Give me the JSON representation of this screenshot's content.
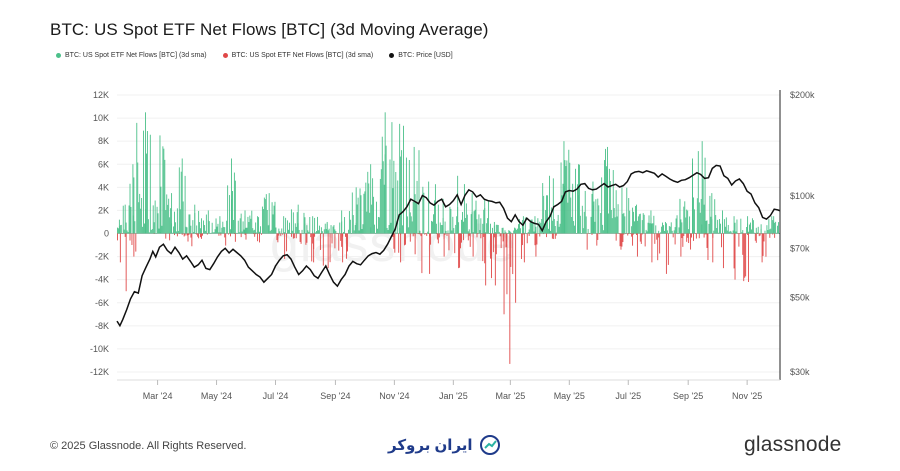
{
  "chart_data": {
    "type": "bar+line",
    "title": "BTC: US Spot ETF Net Flows [BTC] (3d Moving Average)",
    "legend": [
      {
        "label": "BTC: US Spot ETF Net Flows [BTC] (3d sma)",
        "color": "#4cc08a"
      },
      {
        "label": "BTC: US Spot ETF Net Flows [BTC] (3d sma)",
        "color": "#e04848"
      },
      {
        "label": "BTC: Price [USD]",
        "color": "#111111"
      }
    ],
    "x_tick_labels": [
      "Mar '24",
      "May '24",
      "Jul '24",
      "Sep '24",
      "Nov '24",
      "Jan '25",
      "Mar '25",
      "May '25",
      "Jul '25",
      "Sep '25",
      "Nov '25"
    ],
    "x_tick_days": [
      42,
      103,
      164,
      226,
      287,
      348,
      407,
      468,
      529,
      591,
      652
    ],
    "x_range_days": [
      0,
      686
    ],
    "y_left": {
      "ticks": [
        12000,
        10000,
        8000,
        6000,
        4000,
        2000,
        0,
        -2000,
        -4000,
        -6000,
        -8000,
        -10000,
        -12000
      ],
      "tick_labels": [
        "12K",
        "10K",
        "8K",
        "6K",
        "4K",
        "2K",
        "0",
        "-2K",
        "-4K",
        "-6K",
        "-8K",
        "-10K",
        "-12K"
      ],
      "range": [
        -12000,
        12000
      ]
    },
    "y_right": {
      "scale": "log",
      "ticks": [
        30000,
        50000,
        70000,
        100000,
        200000
      ],
      "tick_labels": [
        "$30k",
        "$50k",
        "$70k",
        "$100k",
        "$200k"
      ],
      "range": [
        30000,
        200000
      ]
    },
    "flows_segments": [
      {
        "start": 0,
        "end": 5,
        "min": -2500,
        "max": 1200
      },
      {
        "start": 5,
        "end": 12,
        "min": -5000,
        "max": 2500
      },
      {
        "start": 12,
        "end": 20,
        "min": -2000,
        "max": 6000
      },
      {
        "start": 20,
        "end": 38,
        "min": -500,
        "max": 10500
      },
      {
        "start": 38,
        "end": 50,
        "min": -1500,
        "max": 8500
      },
      {
        "start": 50,
        "end": 62,
        "min": -1000,
        "max": 3500
      },
      {
        "start": 62,
        "end": 72,
        "min": -1200,
        "max": 6500
      },
      {
        "start": 72,
        "end": 88,
        "min": -1500,
        "max": 2500
      },
      {
        "start": 88,
        "end": 100,
        "min": -1000,
        "max": 2000
      },
      {
        "start": 100,
        "end": 112,
        "min": -1000,
        "max": 1500
      },
      {
        "start": 112,
        "end": 125,
        "min": -1500,
        "max": 6500
      },
      {
        "start": 125,
        "end": 140,
        "min": -1000,
        "max": 2000
      },
      {
        "start": 140,
        "end": 150,
        "min": -1500,
        "max": 1500
      },
      {
        "start": 150,
        "end": 165,
        "min": -800,
        "max": 3500
      },
      {
        "start": 165,
        "end": 180,
        "min": -2200,
        "max": 1500
      },
      {
        "start": 180,
        "end": 195,
        "min": -1200,
        "max": 2500
      },
      {
        "start": 195,
        "end": 210,
        "min": -2500,
        "max": 1500
      },
      {
        "start": 210,
        "end": 225,
        "min": -3000,
        "max": 1000
      },
      {
        "start": 225,
        "end": 240,
        "min": -2500,
        "max": 2000
      },
      {
        "start": 240,
        "end": 255,
        "min": -800,
        "max": 4000
      },
      {
        "start": 255,
        "end": 270,
        "min": -500,
        "max": 6000
      },
      {
        "start": 270,
        "end": 285,
        "min": -800,
        "max": 10500
      },
      {
        "start": 285,
        "end": 300,
        "min": -2500,
        "max": 9500
      },
      {
        "start": 300,
        "end": 315,
        "min": -1800,
        "max": 7500
      },
      {
        "start": 315,
        "end": 330,
        "min": -3500,
        "max": 4500
      },
      {
        "start": 330,
        "end": 345,
        "min": -2000,
        "max": 3000
      },
      {
        "start": 345,
        "end": 360,
        "min": -3000,
        "max": 5000
      },
      {
        "start": 360,
        "end": 375,
        "min": -2000,
        "max": 3500
      },
      {
        "start": 375,
        "end": 385,
        "min": -4500,
        "max": 3000
      },
      {
        "start": 385,
        "end": 395,
        "min": -4500,
        "max": 1000
      },
      {
        "start": 395,
        "end": 403,
        "min": -7000,
        "max": 500
      },
      {
        "start": 403,
        "end": 408,
        "min": -11300,
        "max": 300
      },
      {
        "start": 408,
        "end": 415,
        "min": -6000,
        "max": 500
      },
      {
        "start": 415,
        "end": 425,
        "min": -2500,
        "max": 1500
      },
      {
        "start": 425,
        "end": 440,
        "min": -2000,
        "max": 1500
      },
      {
        "start": 440,
        "end": 455,
        "min": -1000,
        "max": 5000
      },
      {
        "start": 455,
        "end": 470,
        "min": -500,
        "max": 8000
      },
      {
        "start": 470,
        "end": 485,
        "min": -800,
        "max": 6000
      },
      {
        "start": 485,
        "end": 500,
        "min": -1500,
        "max": 4500
      },
      {
        "start": 500,
        "end": 515,
        "min": -600,
        "max": 7500
      },
      {
        "start": 515,
        "end": 530,
        "min": -1500,
        "max": 4000
      },
      {
        "start": 530,
        "end": 545,
        "min": -2000,
        "max": 2500
      },
      {
        "start": 545,
        "end": 560,
        "min": -2500,
        "max": 2000
      },
      {
        "start": 560,
        "end": 575,
        "min": -3500,
        "max": 1000
      },
      {
        "start": 575,
        "end": 590,
        "min": -2000,
        "max": 3000
      },
      {
        "start": 590,
        "end": 600,
        "min": -1500,
        "max": 6500
      },
      {
        "start": 600,
        "end": 610,
        "min": -1000,
        "max": 8000
      },
      {
        "start": 610,
        "end": 620,
        "min": -2500,
        "max": 3500
      },
      {
        "start": 620,
        "end": 632,
        "min": -3000,
        "max": 2000
      },
      {
        "start": 632,
        "end": 645,
        "min": -4000,
        "max": 1500
      },
      {
        "start": 645,
        "end": 660,
        "min": -4200,
        "max": 1500
      },
      {
        "start": 660,
        "end": 672,
        "min": -2500,
        "max": 800
      },
      {
        "start": 672,
        "end": 686,
        "min": -1000,
        "max": 1500
      }
    ],
    "price_points": [
      [
        0,
        42500
      ],
      [
        3,
        41200
      ],
      [
        6,
        43000
      ],
      [
        10,
        46000
      ],
      [
        14,
        49500
      ],
      [
        18,
        52000
      ],
      [
        22,
        51500
      ],
      [
        26,
        58000
      ],
      [
        30,
        61500
      ],
      [
        34,
        65000
      ],
      [
        37,
        68500
      ],
      [
        40,
        66000
      ],
      [
        44,
        70500
      ],
      [
        48,
        72000
      ],
      [
        52,
        69000
      ],
      [
        56,
        67500
      ],
      [
        60,
        70500
      ],
      [
        64,
        68000
      ],
      [
        68,
        65000
      ],
      [
        72,
        66500
      ],
      [
        76,
        64000
      ],
      [
        80,
        61500
      ],
      [
        84,
        62500
      ],
      [
        88,
        64500
      ],
      [
        92,
        61000
      ],
      [
        96,
        60500
      ],
      [
        100,
        63000
      ],
      [
        104,
        66000
      ],
      [
        108,
        68500
      ],
      [
        112,
        70000
      ],
      [
        116,
        67800
      ],
      [
        120,
        69500
      ],
      [
        124,
        68000
      ],
      [
        128,
        66500
      ],
      [
        132,
        64500
      ],
      [
        136,
        61500
      ],
      [
        140,
        60000
      ],
      [
        144,
        58500
      ],
      [
        148,
        57500
      ],
      [
        152,
        55500
      ],
      [
        156,
        57000
      ],
      [
        160,
        58500
      ],
      [
        164,
        62000
      ],
      [
        168,
        64500
      ],
      [
        172,
        66500
      ],
      [
        176,
        67000
      ],
      [
        180,
        65000
      ],
      [
        184,
        61500
      ],
      [
        188,
        58500
      ],
      [
        192,
        60000
      ],
      [
        196,
        62000
      ],
      [
        200,
        60500
      ],
      [
        204,
        58000
      ],
      [
        208,
        57000
      ],
      [
        212,
        59500
      ],
      [
        216,
        62000
      ],
      [
        220,
        58500
      ],
      [
        224,
        55500
      ],
      [
        228,
        54000
      ],
      [
        232,
        56500
      ],
      [
        236,
        58500
      ],
      [
        240,
        62000
      ],
      [
        244,
        64000
      ],
      [
        248,
        63000
      ],
      [
        252,
        62500
      ],
      [
        256,
        64500
      ],
      [
        260,
        66500
      ],
      [
        264,
        67500
      ],
      [
        268,
        68000
      ],
      [
        272,
        67200
      ],
      [
        276,
        69000
      ],
      [
        280,
        72000
      ],
      [
        284,
        76000
      ],
      [
        288,
        80000
      ],
      [
        292,
        88000
      ],
      [
        296,
        90000
      ],
      [
        300,
        93000
      ],
      [
        304,
        98000
      ],
      [
        308,
        96500
      ],
      [
        312,
        95000
      ],
      [
        316,
        100500
      ],
      [
        320,
        99000
      ],
      [
        324,
        95500
      ],
      [
        328,
        94000
      ],
      [
        332,
        96500
      ],
      [
        336,
        98000
      ],
      [
        340,
        93000
      ],
      [
        344,
        94500
      ],
      [
        348,
        97000
      ],
      [
        352,
        101000
      ],
      [
        356,
        94500
      ],
      [
        360,
        100500
      ],
      [
        364,
        104500
      ],
      [
        368,
        103000
      ],
      [
        372,
        99500
      ],
      [
        376,
        101000
      ],
      [
        380,
        98000
      ],
      [
        384,
        97000
      ],
      [
        388,
        96500
      ],
      [
        392,
        95500
      ],
      [
        396,
        96000
      ],
      [
        400,
        92000
      ],
      [
        404,
        86000
      ],
      [
        408,
        84000
      ],
      [
        412,
        88000
      ],
      [
        416,
        84000
      ],
      [
        420,
        82000
      ],
      [
        424,
        86000
      ],
      [
        428,
        84000
      ],
      [
        432,
        83000
      ],
      [
        436,
        82500
      ],
      [
        440,
        79000
      ],
      [
        444,
        84000
      ],
      [
        448,
        87000
      ],
      [
        452,
        93000
      ],
      [
        456,
        94500
      ],
      [
        460,
        96500
      ],
      [
        464,
        103000
      ],
      [
        468,
        104000
      ],
      [
        472,
        103500
      ],
      [
        476,
        105000
      ],
      [
        480,
        108500
      ],
      [
        484,
        109000
      ],
      [
        488,
        105500
      ],
      [
        492,
        104500
      ],
      [
        496,
        105000
      ],
      [
        500,
        107000
      ],
      [
        504,
        109000
      ],
      [
        508,
        106500
      ],
      [
        512,
        107500
      ],
      [
        516,
        108500
      ],
      [
        520,
        106500
      ],
      [
        524,
        107500
      ],
      [
        528,
        110500
      ],
      [
        532,
        116500
      ],
      [
        536,
        118000
      ],
      [
        540,
        118500
      ],
      [
        544,
        117500
      ],
      [
        548,
        119000
      ],
      [
        552,
        118000
      ],
      [
        556,
        117000
      ],
      [
        560,
        114000
      ],
      [
        564,
        116500
      ],
      [
        568,
        114500
      ],
      [
        572,
        112500
      ],
      [
        576,
        111000
      ],
      [
        580,
        110000
      ],
      [
        584,
        111500
      ],
      [
        588,
        112000
      ],
      [
        592,
        113500
      ],
      [
        596,
        115500
      ],
      [
        600,
        117500
      ],
      [
        604,
        116000
      ],
      [
        608,
        113000
      ],
      [
        612,
        113500
      ],
      [
        616,
        121000
      ],
      [
        620,
        123500
      ],
      [
        624,
        123000
      ],
      [
        628,
        115000
      ],
      [
        632,
        113000
      ],
      [
        636,
        108000
      ],
      [
        640,
        111000
      ],
      [
        644,
        112500
      ],
      [
        648,
        109000
      ],
      [
        652,
        103500
      ],
      [
        656,
        101500
      ],
      [
        660,
        95500
      ],
      [
        664,
        92500
      ],
      [
        668,
        86500
      ],
      [
        672,
        85500
      ],
      [
        676,
        87500
      ],
      [
        680,
        91500
      ],
      [
        684,
        91000
      ],
      [
        686,
        90500
      ]
    ]
  },
  "watermark": "glassnode",
  "footer": {
    "copyright": "© 2025 Glassnode. All Rights Reserved.",
    "center_brand": "ایران بروکر",
    "brand": "glassnode"
  }
}
